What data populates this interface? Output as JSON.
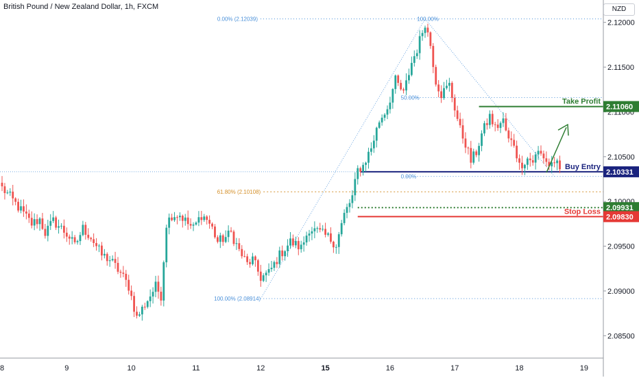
{
  "header": {
    "title": "British Pound / New Zealand Dollar, 1h, FXCM",
    "currency": "NZD"
  },
  "chart_data": {
    "type": "candlestick",
    "symbol": "GBPNZD",
    "timeframe": "1h",
    "ylim": [
      2.0825,
      2.1225
    ],
    "y_ticks": [
      {
        "value": 2.12,
        "label": "2.12000"
      },
      {
        "value": 2.115,
        "label": "2.11500"
      },
      {
        "value": 2.11,
        "label": "2.11000"
      },
      {
        "value": 2.105,
        "label": "2.10500"
      },
      {
        "value": 2.1,
        "label": "2.10000"
      },
      {
        "value": 2.095,
        "label": "2.09500"
      },
      {
        "value": 2.09,
        "label": "2.09000"
      },
      {
        "value": 2.085,
        "label": "2.08500"
      }
    ],
    "x_ticks": [
      {
        "bar": 0,
        "label": "8",
        "bold": false
      },
      {
        "bar": 24,
        "label": "9",
        "bold": false
      },
      {
        "bar": 48,
        "label": "10",
        "bold": false
      },
      {
        "bar": 72,
        "label": "11",
        "bold": false
      },
      {
        "bar": 96,
        "label": "12",
        "bold": false
      },
      {
        "bar": 120,
        "label": "15",
        "bold": true
      },
      {
        "bar": 144,
        "label": "16",
        "bold": false
      },
      {
        "bar": 168,
        "label": "17",
        "bold": false
      },
      {
        "bar": 192,
        "label": "18",
        "bold": false
      },
      {
        "bar": 216,
        "label": "19",
        "bold": false
      }
    ],
    "bars_total": 223,
    "anchors": [
      [
        0,
        2.1015
      ],
      [
        3,
        2.1005
      ],
      [
        7,
        2.099
      ],
      [
        11,
        2.0975
      ],
      [
        14,
        2.098
      ],
      [
        16,
        2.0965
      ],
      [
        19,
        2.0978
      ],
      [
        22,
        2.097
      ],
      [
        25,
        2.096
      ],
      [
        27,
        2.095
      ],
      [
        30,
        2.097
      ],
      [
        33,
        2.096
      ],
      [
        37,
        2.094
      ],
      [
        40,
        2.0935
      ],
      [
        44,
        2.092
      ],
      [
        47,
        2.0905
      ],
      [
        50,
        2.087
      ],
      [
        53,
        2.0885
      ],
      [
        57,
        2.0905
      ],
      [
        59,
        2.0895
      ],
      [
        61,
        2.0975
      ],
      [
        63,
        2.0985
      ],
      [
        66,
        2.0985
      ],
      [
        69,
        2.0975
      ],
      [
        71,
        2.097
      ],
      [
        74,
        2.0985
      ],
      [
        76,
        2.098
      ],
      [
        78,
        2.097
      ],
      [
        80,
        2.0955
      ],
      [
        83,
        2.096
      ],
      [
        85,
        2.0965
      ],
      [
        88,
        2.0945
      ],
      [
        91,
        2.093
      ],
      [
        93,
        2.0935
      ],
      [
        96,
        2.0915
      ],
      [
        99,
        2.092
      ],
      [
        103,
        2.094
      ],
      [
        107,
        2.0955
      ],
      [
        111,
        2.0948
      ],
      [
        114,
        2.097
      ],
      [
        118,
        2.0965
      ],
      [
        121,
        2.096
      ],
      [
        124,
        2.0952
      ],
      [
        127,
        2.0985
      ],
      [
        130,
        2.1005
      ],
      [
        132,
        2.1035
      ],
      [
        134,
        2.104
      ],
      [
        137,
        2.106
      ],
      [
        140,
        2.109
      ],
      [
        143,
        2.1105
      ],
      [
        146,
        2.1135
      ],
      [
        149,
        2.112
      ],
      [
        152,
        2.1155
      ],
      [
        154,
        2.117
      ],
      [
        156,
        2.119
      ],
      [
        157,
        2.12
      ],
      [
        159,
        2.1175
      ],
      [
        161,
        2.1135
      ],
      [
        163,
        2.112
      ],
      [
        166,
        2.113
      ],
      [
        168,
        2.1105
      ],
      [
        170,
        2.108
      ],
      [
        172,
        2.1065
      ],
      [
        174,
        2.1045
      ],
      [
        176,
        2.1055
      ],
      [
        178,
        2.1075
      ],
      [
        181,
        2.1095
      ],
      [
        183,
        2.1082
      ],
      [
        186,
        2.109
      ],
      [
        188,
        2.1068
      ],
      [
        190,
        2.1065
      ],
      [
        192,
        2.104
      ],
      [
        195,
        2.1048
      ],
      [
        197,
        2.1045
      ],
      [
        199,
        2.1055
      ],
      [
        201,
        2.105
      ],
      [
        203,
        2.104
      ],
      [
        205,
        2.1045
      ],
      [
        207,
        2.1036
      ]
    ],
    "fibonacci_retracements": [
      {
        "level": "0.00%",
        "price": 2.12039,
        "label": "0.00% (2.12039)"
      },
      {
        "level": "61.80%",
        "price": 2.10108,
        "label": "61.80% (2.10108)"
      },
      {
        "level": "100.00%",
        "price": 2.08914,
        "label": "100.00% (2.08914)"
      }
    ],
    "fibonacci_right": [
      {
        "level": "100.00%",
        "price": 2.12039,
        "label": "100.00%"
      },
      {
        "level": "50.00%",
        "price": 2.1116,
        "label": "50.00%"
      },
      {
        "level": "0.00%",
        "price": 2.1028,
        "label": "0.00%"
      }
    ],
    "levels": [
      {
        "name": "Take Profit",
        "price": 2.1106,
        "label": "2.11060",
        "color": "#2e7d32"
      },
      {
        "name": "Buy Entry",
        "price": 2.10331,
        "label": "2.10331",
        "color": "#1a237e"
      },
      {
        "name": "",
        "price": 2.09931,
        "label": "2.09931",
        "color": "#2e7d32"
      },
      {
        "name": "Stop Loss",
        "price": 2.0983,
        "label": "2.09830",
        "color": "#e53935"
      }
    ],
    "colors": {
      "up": "#26a69a",
      "down": "#ef5350",
      "fib_blue": "#4a90d9",
      "fib_orange": "#d4902a",
      "grid_axis": "#e0e3eb",
      "text": "#131722"
    }
  }
}
